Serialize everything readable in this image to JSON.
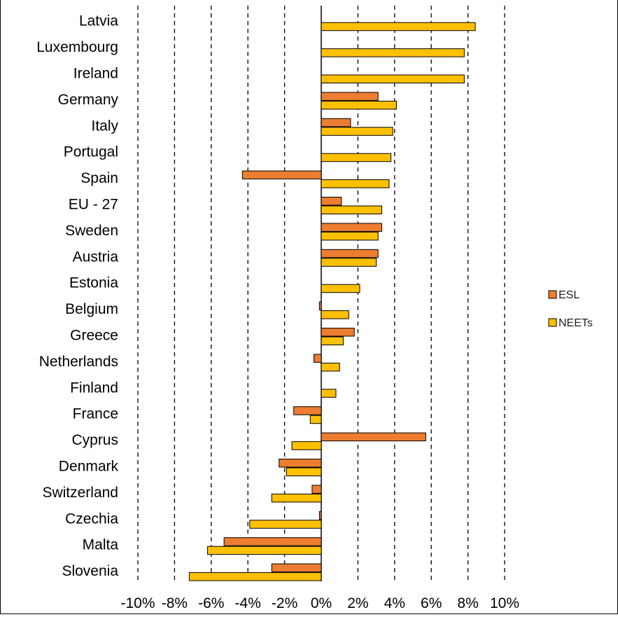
{
  "chart_data": {
    "type": "bar",
    "orientation": "horizontal",
    "title": "",
    "xlabel": "",
    "ylabel": "",
    "xlim": [
      -10,
      10
    ],
    "x_ticks": [
      -10,
      -8,
      -6,
      -4,
      -2,
      0,
      2,
      4,
      6,
      8,
      10
    ],
    "x_tick_labels": [
      "-10%",
      "-8%",
      "-6%",
      "-4%",
      "-2%",
      "0%",
      "2%",
      "4%",
      "6%",
      "8%",
      "10%"
    ],
    "grid": "vertical dashed",
    "legend_position": "right",
    "categories": [
      "Latvia",
      "Luxembourg",
      "Ireland",
      "Germany",
      "Italy",
      "Portugal",
      "Spain",
      "EU - 27",
      "Sweden",
      "Austria",
      "Estonia",
      "Belgium",
      "Greece",
      "Netherlands",
      "Finland",
      "France",
      "Cyprus",
      "Denmark",
      "Switzerland",
      "Czechia",
      "Malta",
      "Slovenia"
    ],
    "series": [
      {
        "name": "ESL",
        "color": "#ED7D31",
        "values": [
          0,
          0,
          0,
          3.1,
          1.6,
          0,
          -4.3,
          1.1,
          3.3,
          3.1,
          0,
          -0.1,
          1.8,
          -0.4,
          0,
          -1.5,
          5.7,
          -2.3,
          -0.5,
          -0.1,
          -5.3,
          -2.7
        ]
      },
      {
        "name": "NEETs",
        "color": "#FFC000",
        "values": [
          8.4,
          7.8,
          7.8,
          4.1,
          3.9,
          3.8,
          3.7,
          3.3,
          3.1,
          3.0,
          2.1,
          1.5,
          1.2,
          1.0,
          0.8,
          -0.6,
          -1.6,
          -1.9,
          -2.7,
          -3.9,
          -6.2,
          -7.2
        ]
      }
    ]
  }
}
